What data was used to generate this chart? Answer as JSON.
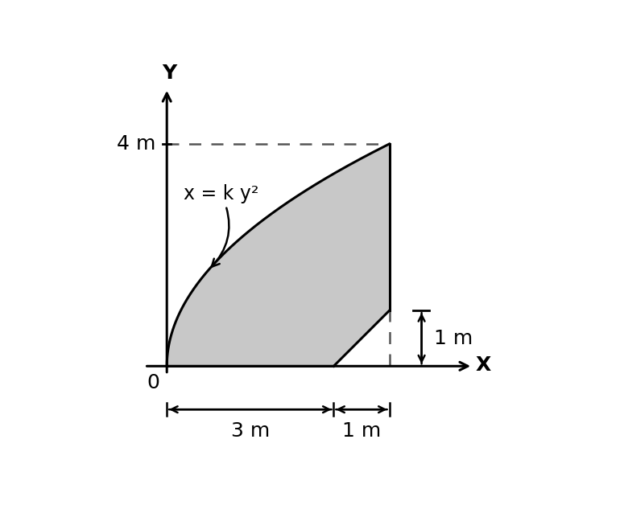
{
  "x_label": "X",
  "y_label": "Y",
  "k": 0.25,
  "y_max_curve": 4.0,
  "label_4m": "4 m",
  "label_3m": "3 m",
  "label_1m_h": "1 m",
  "label_1m_v": "1 m",
  "label_0": "0",
  "curve_label": "x = k y²",
  "fill_color": "#C8C8C8",
  "fill_alpha": 1.0,
  "line_color": "#000000",
  "dashed_color": "#555555",
  "axis_color": "#000000",
  "background_color": "#ffffff",
  "arrow_color": "#000000",
  "font_size_labels": 18,
  "font_size_curve": 17,
  "fig_width": 7.75,
  "fig_height": 6.28,
  "dpi": 100,
  "xlim": [
    -0.7,
    6.2
  ],
  "ylim": [
    -1.5,
    5.5
  ]
}
